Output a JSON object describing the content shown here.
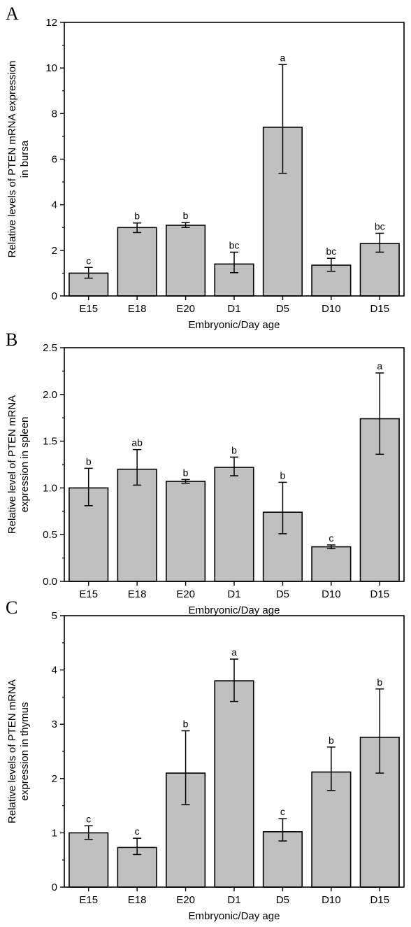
{
  "colors": {
    "bar_fill": "#c0c0c0",
    "bar_stroke": "#000000",
    "axis": "#000000"
  },
  "chart_data": [
    {
      "panel": "A",
      "type": "bar",
      "xlabel": "Embryonic/Day age",
      "ylabel": [
        "Relative levels of PTEN mRNA expression",
        "in bursa"
      ],
      "ylim": [
        0,
        12
      ],
      "yticks": [
        "0",
        "2",
        "4",
        "6",
        "8",
        "10",
        "12"
      ],
      "categories": [
        "E15",
        "E18",
        "E20",
        "D1",
        "D5",
        "D10",
        "D15"
      ],
      "values": [
        1.0,
        3.0,
        3.1,
        1.4,
        7.4,
        1.35,
        2.3
      ],
      "error_low": [
        0.78,
        2.78,
        3.0,
        1.02,
        5.38,
        1.08,
        1.92
      ],
      "error_high": [
        1.25,
        3.2,
        3.22,
        1.92,
        10.15,
        1.65,
        2.75
      ],
      "annotations": [
        "c",
        "b",
        "b",
        "bc",
        "a",
        "bc",
        "bc"
      ]
    },
    {
      "panel": "B",
      "type": "bar",
      "xlabel": "Embryonic/Day age",
      "ylabel": [
        "Relative level of PTEN mRNA",
        "expression in spleen"
      ],
      "ylim": [
        0,
        2.5
      ],
      "yticks": [
        "0.0",
        "0.5",
        "1.0",
        "1.5",
        "2.0",
        "2.5"
      ],
      "categories": [
        "E15",
        "E18",
        "E20",
        "D1",
        "D5",
        "D10",
        "D15"
      ],
      "values": [
        1.0,
        1.2,
        1.07,
        1.22,
        0.74,
        0.37,
        1.74
      ],
      "error_low": [
        0.81,
        1.03,
        1.05,
        1.13,
        0.51,
        0.35,
        1.36
      ],
      "error_high": [
        1.21,
        1.41,
        1.09,
        1.33,
        1.06,
        0.39,
        2.23
      ],
      "annotations": [
        "b",
        "ab",
        "b",
        "b",
        "b",
        "c",
        "a"
      ]
    },
    {
      "panel": "C",
      "type": "bar",
      "xlabel": "Embryonic/Day age",
      "ylabel": [
        "Relative levels of PTEN mRNA",
        "expression in thymus"
      ],
      "ylim": [
        0,
        5
      ],
      "yticks": [
        "0",
        "1",
        "2",
        "3",
        "4",
        "5"
      ],
      "categories": [
        "E15",
        "E18",
        "E20",
        "D1",
        "D5",
        "D10",
        "D15"
      ],
      "values": [
        1.0,
        0.73,
        2.1,
        3.8,
        1.02,
        2.12,
        2.76
      ],
      "error_low": [
        0.88,
        0.6,
        1.52,
        3.42,
        0.85,
        1.78,
        2.1
      ],
      "error_high": [
        1.13,
        0.9,
        2.88,
        4.2,
        1.26,
        2.58,
        3.65
      ],
      "annotations": [
        "c",
        "c",
        "b",
        "a",
        "c",
        "b",
        "b"
      ]
    }
  ]
}
